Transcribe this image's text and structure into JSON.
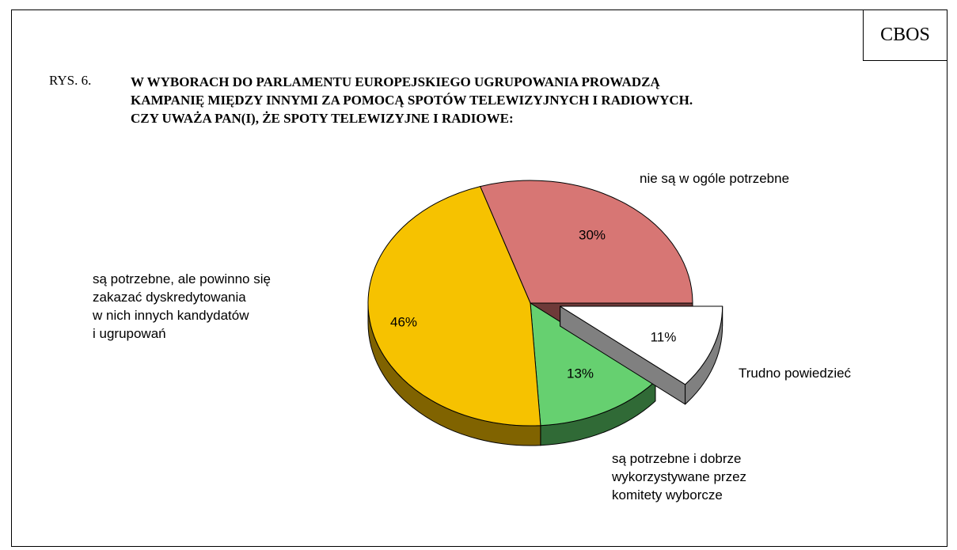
{
  "brand": "CBOS",
  "figure_number": "RYS. 6.",
  "chart_data": {
    "type": "pie",
    "title": "W WYBORACH DO PARLAMENTU EUROPEJSKIEGO UGRUPOWANIA PROWADZĄ\nKAMPANIĘ MIĘDZY INNYMI ZA POMOCĄ SPOTÓW TELEWIZYJNYCH I RADIOWYCH.\nCZY UWAŻA PAN(I), ŻE SPOTY TELEWIZYJNE I RADIOWE:",
    "categories": [
      "nie są w ogóle potrzebne",
      "Trudno powiedzieć",
      "są potrzebne i dobrze\nwykorzystywane przez\nkomitety wyborcze",
      "są potrzebne, ale powinno się\nzakazać dyskredytowania\nw nich innych kandydatów\ni ugrupowań"
    ],
    "values": [
      30,
      11,
      13,
      46
    ],
    "value_labels": [
      "30%",
      "11%",
      "13%",
      "46%"
    ],
    "colors": [
      "#d77674",
      "#ffffff",
      "#66d070",
      "#f6c200"
    ],
    "side_colors": [
      "#6e3a39",
      "#808080",
      "#306a36",
      "#806300"
    ]
  }
}
